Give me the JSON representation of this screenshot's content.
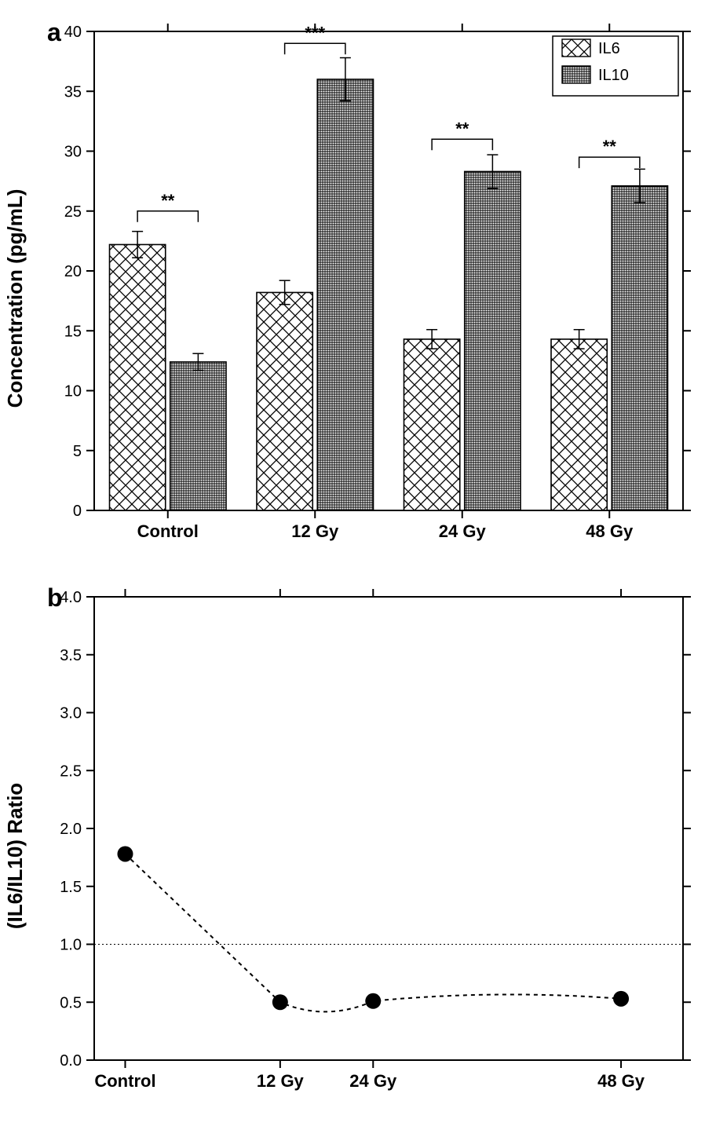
{
  "panel_a": {
    "label": "a",
    "type": "bar",
    "y_title": "Concentration (pg/mL)",
    "categories": [
      "Control",
      "12 Gy",
      "24 Gy",
      "48 Gy"
    ],
    "series": [
      {
        "name": "IL6",
        "pattern": "crosshatch",
        "color": "#000000",
        "values": [
          22.2,
          18.2,
          14.3,
          14.3
        ],
        "errors": [
          1.1,
          1.0,
          0.8,
          0.8
        ]
      },
      {
        "name": "IL10",
        "pattern": "grid",
        "color": "#000000",
        "values": [
          12.4,
          36.0,
          28.3,
          27.1
        ],
        "errors": [
          0.7,
          1.8,
          1.4,
          1.4
        ]
      }
    ],
    "significance": [
      {
        "group": 0,
        "label": "**",
        "y": 25.0
      },
      {
        "group": 1,
        "label": "***",
        "y": 39.0
      },
      {
        "group": 2,
        "label": "**",
        "y": 31.0
      },
      {
        "group": 3,
        "label": "**",
        "y": 29.5
      }
    ],
    "legend": {
      "items": [
        "IL6",
        "IL10"
      ],
      "position": "top-right"
    },
    "ylim": [
      0,
      40
    ],
    "ytick_step": 5,
    "background_color": "#ffffff",
    "bar_outline": "#000000",
    "bar_width": 0.38,
    "axis_linewidth": 2,
    "label_fontsize": 22,
    "tick_fontsize": 20,
    "title_fontsize": 26
  },
  "panel_b": {
    "label": "b",
    "type": "scatter-line",
    "y_title": "(IL6/IL10) Ratio",
    "categories": [
      "Control",
      "12 Gy",
      "24 Gy",
      "48 Gy"
    ],
    "x_positions": [
      0,
      1,
      1.6,
      3.2
    ],
    "values": [
      1.78,
      0.5,
      0.51,
      0.53
    ],
    "marker": {
      "shape": "circle",
      "size": 10,
      "fill": "#000000"
    },
    "line": {
      "style": "dashed",
      "width": 2,
      "color": "#000000"
    },
    "reference_line": {
      "y": 1.0,
      "style": "dotted",
      "color": "#000000"
    },
    "ylim": [
      0.0,
      4.0
    ],
    "ytick_step": 0.5,
    "background_color": "#ffffff",
    "axis_linewidth": 2,
    "label_fontsize": 22,
    "tick_fontsize": 20,
    "title_fontsize": 26
  }
}
